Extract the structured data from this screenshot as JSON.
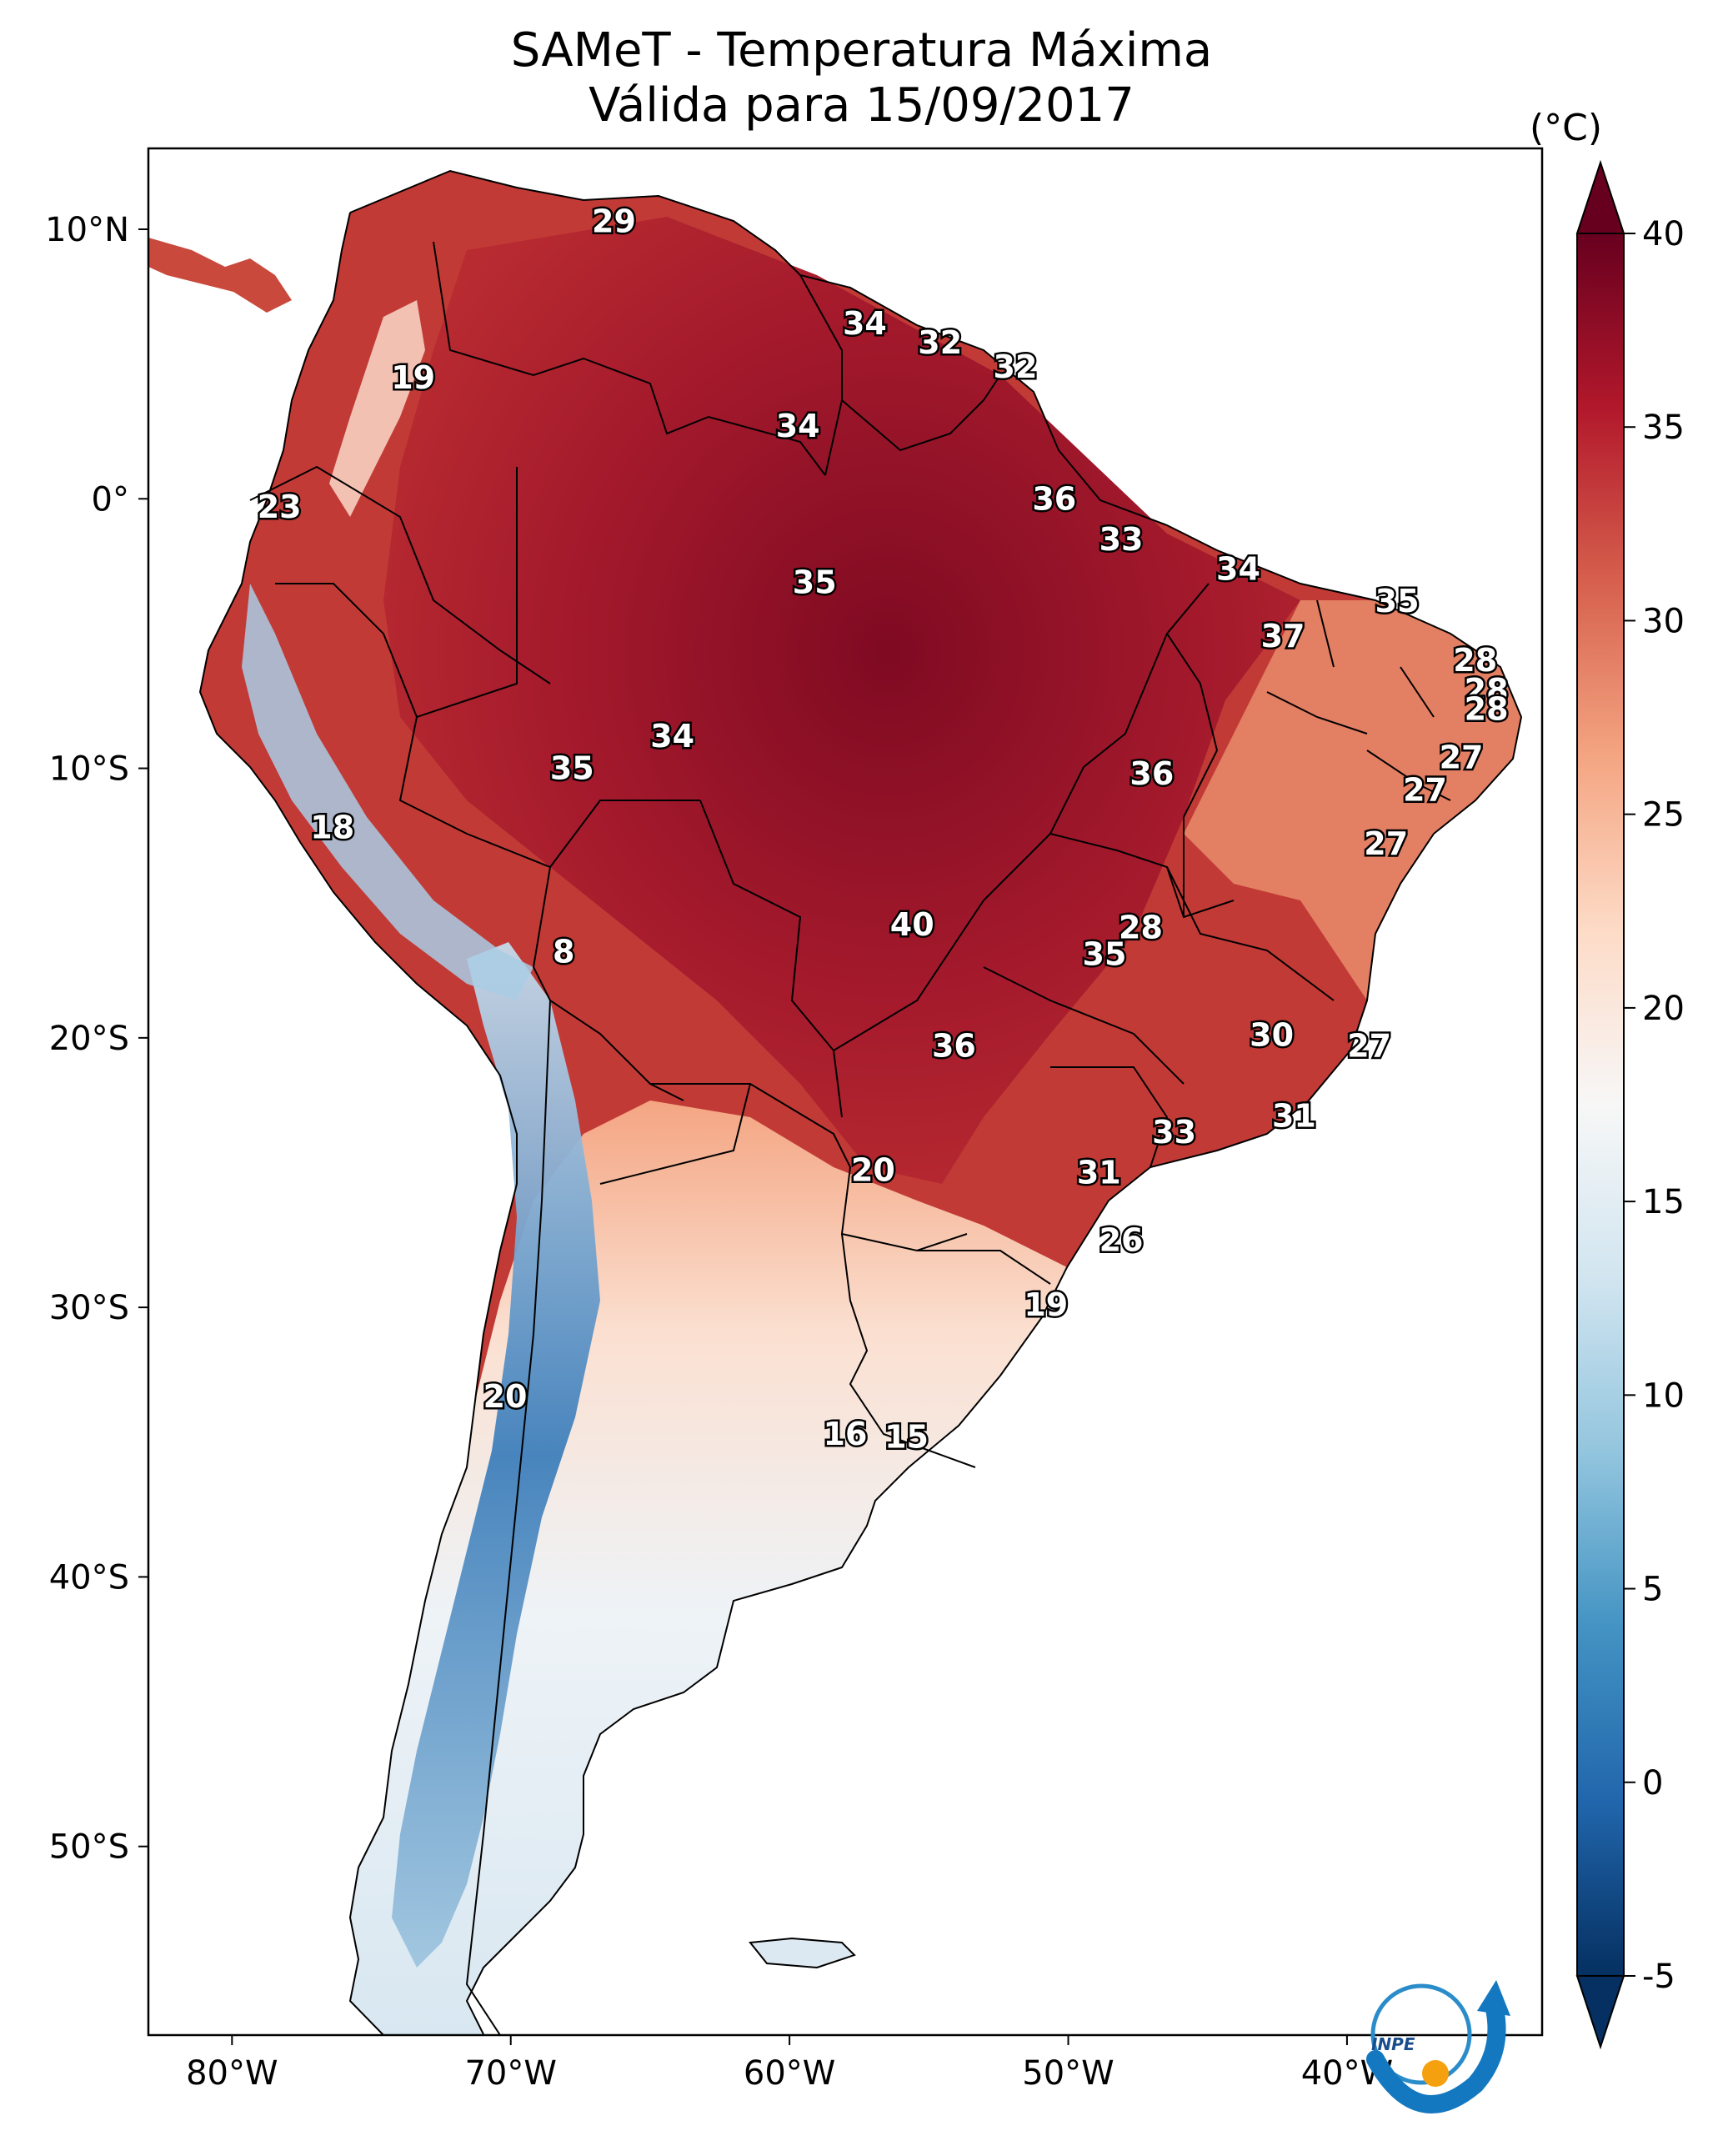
{
  "title": {
    "line1": "SAMeT - Temperatura Máxima",
    "line2": "Válida para 15/09/2017"
  },
  "colorbar": {
    "unit": "(°C)",
    "ticks": [
      "40",
      "35",
      "30",
      "25",
      "20",
      "15",
      "10",
      "5",
      "0",
      "-5"
    ],
    "min": -5,
    "max": 40,
    "colors": [
      "#053061",
      "#2166ac",
      "#4393c3",
      "#92c5de",
      "#d1e5f0",
      "#f7f7f7",
      "#fddbc7",
      "#f4a582",
      "#d6604d",
      "#b2182b",
      "#67001f"
    ]
  },
  "axes": {
    "lat_ticks": [
      "10°N",
      "0°",
      "10°S",
      "20°S",
      "30°S",
      "40°S",
      "50°S"
    ],
    "lon_ticks": [
      "80°W",
      "70°W",
      "60°W",
      "50°W",
      "40°W"
    ]
  },
  "logo": {
    "text": "INPE"
  },
  "contour_labels": [
    {
      "t": "29",
      "lon": -66.3,
      "lat": 10.3
    },
    {
      "t": "34",
      "lon": -57.3,
      "lat": 6.5
    },
    {
      "t": "32",
      "lon": -54.6,
      "lat": 5.8
    },
    {
      "t": "32",
      "lon": -51.9,
      "lat": 4.9
    },
    {
      "t": "19",
      "lon": -73.5,
      "lat": 4.5
    },
    {
      "t": "34",
      "lon": -59.7,
      "lat": 2.7
    },
    {
      "t": "36",
      "lon": -50.5,
      "lat": 0.0
    },
    {
      "t": "23",
      "lon": -78.3,
      "lat": -0.3
    },
    {
      "t": "33",
      "lon": -48.1,
      "lat": -1.5
    },
    {
      "t": "34",
      "lon": -43.9,
      "lat": -2.6
    },
    {
      "t": "35",
      "lon": -59.1,
      "lat": -3.1
    },
    {
      "t": "35",
      "lon": -38.2,
      "lat": -3.8
    },
    {
      "t": "37",
      "lon": -42.3,
      "lat": -5.1
    },
    {
      "t": "28",
      "lon": -35.4,
      "lat": -6.0
    },
    {
      "t": "28",
      "lon": -35.0,
      "lat": -7.1
    },
    {
      "t": "28",
      "lon": -35.0,
      "lat": -7.8
    },
    {
      "t": "34",
      "lon": -64.2,
      "lat": -8.8
    },
    {
      "t": "27",
      "lon": -35.9,
      "lat": -9.6
    },
    {
      "t": "35",
      "lon": -67.8,
      "lat": -10.0
    },
    {
      "t": "36",
      "lon": -47.0,
      "lat": -10.2
    },
    {
      "t": "27",
      "lon": -37.2,
      "lat": -10.8
    },
    {
      "t": "18",
      "lon": -76.4,
      "lat": -12.2
    },
    {
      "t": "27",
      "lon": -38.6,
      "lat": -12.8
    },
    {
      "t": "40",
      "lon": -55.6,
      "lat": -15.8
    },
    {
      "t": "28",
      "lon": -47.4,
      "lat": -15.9
    },
    {
      "t": "35",
      "lon": -48.7,
      "lat": -16.9
    },
    {
      "t": "8",
      "lon": -68.1,
      "lat": -16.8
    },
    {
      "t": "30",
      "lon": -42.7,
      "lat": -19.9
    },
    {
      "t": "36",
      "lon": -54.1,
      "lat": -20.3
    },
    {
      "t": "27",
      "lon": -39.2,
      "lat": -20.3
    },
    {
      "t": "31",
      "lon": -41.9,
      "lat": -22.9
    },
    {
      "t": "33",
      "lon": -46.2,
      "lat": -23.5
    },
    {
      "t": "20",
      "lon": -57.0,
      "lat": -24.9
    },
    {
      "t": "31",
      "lon": -48.9,
      "lat": -25.0
    },
    {
      "t": "26",
      "lon": -48.1,
      "lat": -27.5
    },
    {
      "t": "19",
      "lon": -50.8,
      "lat": -29.9
    },
    {
      "t": "20",
      "lon": -70.2,
      "lat": -33.3
    },
    {
      "t": "16",
      "lon": -58.0,
      "lat": -34.7
    },
    {
      "t": "15",
      "lon": -55.8,
      "lat": -34.8
    }
  ]
}
